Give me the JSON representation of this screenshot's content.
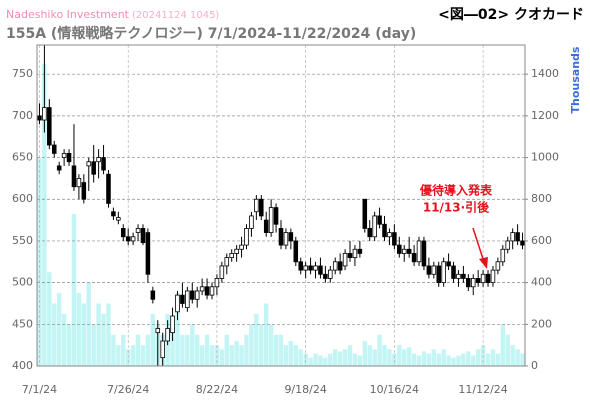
{
  "chart_data": {
    "type": "candlestick",
    "source": "Nadeshiko Investment",
    "timestamp": "(20241124 1045)",
    "title": "155A (情報戦略テクノロジー) 7/1/2024-11/22/2024 (day)",
    "figure_label": "<図―02> クオカード",
    "y2label": "Thousands",
    "annotation": [
      "優待導入発表",
      "11/13·引後"
    ],
    "categories": [
      "7/1/24",
      null,
      null,
      null,
      null,
      null,
      null,
      null,
      null,
      null,
      null,
      null,
      null,
      null,
      null,
      null,
      null,
      null,
      "7/26/24",
      null,
      null,
      null,
      null,
      null,
      null,
      null,
      null,
      null,
      null,
      null,
      null,
      null,
      null,
      null,
      null,
      null,
      "8/22/24",
      null,
      null,
      null,
      null,
      null,
      null,
      null,
      null,
      null,
      null,
      null,
      null,
      null,
      null,
      null,
      null,
      null,
      "9/18/24",
      null,
      null,
      null,
      null,
      null,
      null,
      null,
      null,
      null,
      null,
      null,
      null,
      null,
      null,
      null,
      null,
      null,
      "10/16/24",
      null,
      null,
      null,
      null,
      null,
      null,
      null,
      null,
      null,
      null,
      null,
      null,
      null,
      null,
      null,
      null,
      null,
      "11/12/24",
      null,
      null,
      null,
      null,
      null,
      null,
      null,
      null
    ],
    "open": [
      700,
      695,
      710,
      665,
      640,
      650,
      655,
      640,
      615,
      620,
      640,
      645,
      645,
      650,
      630,
      585,
      575,
      565,
      555,
      550,
      560,
      565,
      560,
      490,
      440,
      410,
      430,
      440,
      465,
      485,
      470,
      490,
      480,
      490,
      495,
      485,
      495,
      505,
      520,
      530,
      535,
      540,
      545,
      565,
      585,
      600,
      575,
      560,
      590,
      565,
      545,
      560,
      550,
      525,
      515,
      520,
      515,
      520,
      510,
      505,
      515,
      525,
      520,
      535,
      530,
      540,
      600,
      565,
      555,
      580,
      570,
      555,
      560,
      545,
      535,
      540,
      535,
      525,
      550,
      520,
      510,
      520,
      500,
      525,
      520,
      505,
      510,
      505,
      495,
      505,
      500,
      510,
      500,
      515,
      525,
      540,
      550,
      560,
      550
    ],
    "high": [
      715,
      785,
      720,
      670,
      645,
      660,
      660,
      690,
      630,
      630,
      650,
      665,
      660,
      665,
      635,
      590,
      585,
      570,
      565,
      560,
      570,
      570,
      565,
      495,
      455,
      440,
      455,
      470,
      490,
      500,
      495,
      500,
      495,
      505,
      505,
      500,
      510,
      525,
      535,
      540,
      545,
      555,
      570,
      585,
      605,
      605,
      585,
      600,
      595,
      575,
      565,
      565,
      555,
      530,
      525,
      530,
      525,
      530,
      520,
      520,
      530,
      535,
      540,
      550,
      545,
      550,
      600,
      575,
      585,
      590,
      580,
      565,
      570,
      555,
      545,
      555,
      545,
      555,
      555,
      530,
      525,
      525,
      530,
      535,
      525,
      515,
      520,
      510,
      510,
      515,
      515,
      515,
      520,
      530,
      545,
      555,
      565,
      570,
      560
    ],
    "low": [
      690,
      680,
      660,
      650,
      630,
      640,
      640,
      610,
      600,
      595,
      610,
      620,
      625,
      630,
      590,
      575,
      570,
      550,
      545,
      545,
      550,
      545,
      500,
      475,
      400,
      400,
      425,
      430,
      455,
      470,
      465,
      475,
      470,
      485,
      480,
      480,
      485,
      500,
      510,
      525,
      525,
      530,
      540,
      555,
      575,
      575,
      555,
      555,
      560,
      540,
      540,
      540,
      520,
      510,
      505,
      510,
      505,
      505,
      500,
      500,
      510,
      510,
      515,
      525,
      520,
      530,
      560,
      550,
      550,
      565,
      550,
      545,
      540,
      530,
      525,
      530,
      520,
      520,
      515,
      505,
      505,
      495,
      495,
      515,
      500,
      495,
      500,
      490,
      485,
      495,
      495,
      495,
      495,
      510,
      520,
      535,
      540,
      545,
      540
    ],
    "close": [
      695,
      710,
      665,
      655,
      635,
      655,
      645,
      615,
      625,
      600,
      645,
      630,
      650,
      635,
      595,
      580,
      578,
      555,
      550,
      555,
      565,
      548,
      510,
      480,
      445,
      430,
      445,
      460,
      485,
      475,
      490,
      480,
      490,
      495,
      485,
      495,
      505,
      520,
      530,
      535,
      540,
      545,
      565,
      580,
      600,
      580,
      560,
      590,
      570,
      545,
      560,
      550,
      525,
      515,
      520,
      515,
      520,
      510,
      505,
      515,
      525,
      515,
      535,
      530,
      540,
      535,
      565,
      555,
      580,
      570,
      555,
      560,
      545,
      535,
      540,
      535,
      525,
      550,
      520,
      510,
      520,
      500,
      525,
      520,
      505,
      510,
      505,
      495,
      505,
      500,
      510,
      500,
      515,
      525,
      540,
      550,
      560,
      550,
      545
    ],
    "volume": {
      "axis": "y2",
      "color": "#c4f5f5",
      "values": [
        1000,
        1450,
        450,
        300,
        350,
        250,
        200,
        730,
        350,
        300,
        400,
        200,
        300,
        250,
        300,
        150,
        100,
        150,
        80,
        100,
        150,
        100,
        150,
        250,
        200,
        150,
        250,
        200,
        350,
        150,
        150,
        200,
        150,
        100,
        150,
        100,
        100,
        80,
        150,
        100,
        120,
        100,
        150,
        200,
        250,
        200,
        300,
        200,
        150,
        150,
        100,
        120,
        100,
        80,
        60,
        40,
        60,
        50,
        40,
        60,
        80,
        70,
        80,
        100,
        60,
        50,
        120,
        100,
        80,
        150,
        100,
        80,
        60,
        100,
        80,
        90,
        60,
        50,
        70,
        60,
        80,
        60,
        80,
        50,
        40,
        50,
        60,
        70,
        50,
        80,
        100,
        60,
        80,
        60,
        200,
        150,
        100,
        80,
        60
      ]
    },
    "ylim": [
      400,
      785
    ],
    "yticks": [
      400,
      450,
      500,
      550,
      600,
      650,
      700,
      750
    ],
    "y2lim": [
      0,
      1540
    ],
    "y2ticks": [
      0,
      200,
      400,
      600,
      800,
      1000,
      1200,
      1400
    ],
    "grid": true,
    "up_color": "#ffffff",
    "down_color": "#000000",
    "annotation_color": "#e8101a"
  }
}
